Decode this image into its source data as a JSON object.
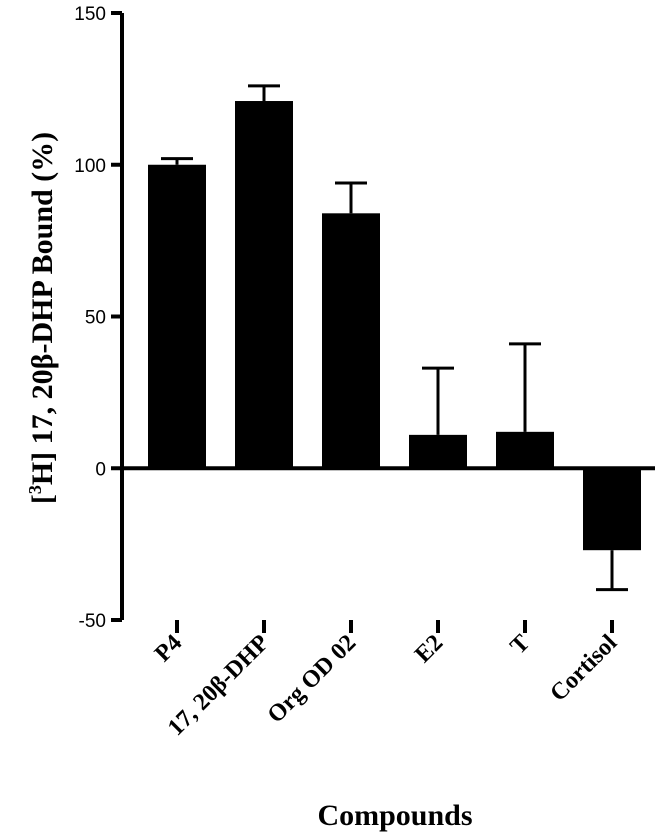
{
  "chart_data": {
    "type": "bar",
    "categories": [
      "P4",
      "17, 20β-DHP",
      "Org OD 02",
      "E2",
      "T",
      "Cortisol"
    ],
    "values": [
      100,
      121,
      84,
      11,
      12,
      -27
    ],
    "error_bars": [
      2,
      5,
      10,
      22,
      29,
      13
    ],
    "xlabel": "Compounds",
    "ylabel": {
      "bracket_open": "[",
      "superscript": "3",
      "main": "H] 17, 20β-DHP Bound (%)"
    },
    "ylim": [
      -50,
      150
    ],
    "yticks": [
      -50,
      0,
      50,
      100,
      150
    ],
    "grid": false,
    "bar_color": "#000000"
  }
}
